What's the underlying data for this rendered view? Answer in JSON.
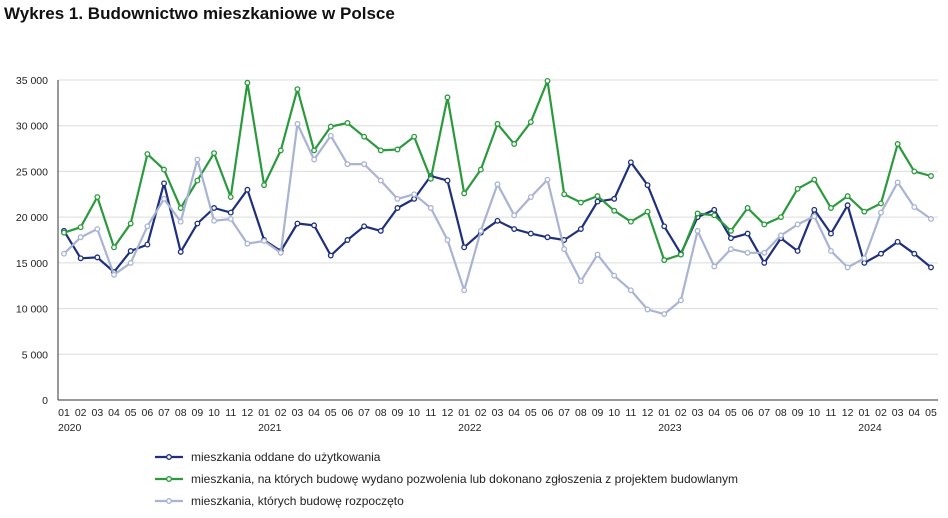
{
  "title": "Wykres 1. Budownictwo mieszkaniowe w Polsce",
  "colors": {
    "series1": "#1d2f7d",
    "series2": "#2a9a3c",
    "series3": "#a9b3d3",
    "grid": "#dcdcdc",
    "axis": "#333333"
  },
  "chart_data": {
    "type": "line",
    "title": "Wykres 1. Budownictwo mieszkaniowe w Polsce",
    "xlabel": "",
    "ylabel": "",
    "ylim": [
      0,
      35000
    ],
    "yticks": [
      0,
      5000,
      10000,
      15000,
      20000,
      25000,
      30000,
      35000
    ],
    "ytick_labels": [
      "0",
      "5 000",
      "10 000",
      "15 000",
      "20 000",
      "25 000",
      "30 000",
      "35 000"
    ],
    "grid": "horizontal",
    "legend_position": "bottom",
    "month_labels": [
      "01",
      "02",
      "03",
      "04",
      "05",
      "06",
      "07",
      "08",
      "09",
      "10",
      "11",
      "12",
      "01",
      "02",
      "03",
      "04",
      "05",
      "06",
      "07",
      "08",
      "09",
      "10",
      "11",
      "12",
      "01",
      "02",
      "03",
      "04",
      "05",
      "06",
      "07",
      "08",
      "09",
      "10",
      "11",
      "12",
      "01",
      "02",
      "03",
      "04",
      "05",
      "06",
      "07",
      "08",
      "09",
      "10",
      "11",
      "12",
      "01",
      "02",
      "03",
      "04",
      "05"
    ],
    "year_labels": [
      {
        "index": 0,
        "label": "2020"
      },
      {
        "index": 12,
        "label": "2021"
      },
      {
        "index": 24,
        "label": "2022"
      },
      {
        "index": 36,
        "label": "2023"
      },
      {
        "index": 48,
        "label": "2024"
      }
    ],
    "series": [
      {
        "name": "mieszkania oddane do użytkowania",
        "values": [
          18500,
          15500,
          15600,
          14000,
          16300,
          17000,
          23700,
          16200,
          19300,
          21000,
          20500,
          23000,
          17500,
          16300,
          19300,
          19100,
          15800,
          17500,
          19000,
          18500,
          21000,
          22000,
          24500,
          24000,
          16700,
          18300,
          19600,
          18700,
          18200,
          17800,
          17500,
          18700,
          21700,
          22000,
          26000,
          23500,
          19000,
          16000,
          20000,
          20800,
          17700,
          18200,
          15000,
          17700,
          16300,
          20800,
          18200,
          21300,
          15000,
          16000,
          17300,
          16000,
          14500
        ]
      },
      {
        "name": "mieszkania, na których budowę wydano pozwolenia lub dokonano zgłoszenia z projektem budowlanym",
        "values": [
          18300,
          18900,
          22200,
          16700,
          19300,
          26900,
          25200,
          21000,
          24000,
          27000,
          22200,
          34700,
          23500,
          27300,
          34000,
          27300,
          29900,
          30300,
          28800,
          27300,
          27400,
          28800,
          24200,
          33100,
          22600,
          25200,
          30200,
          28000,
          30400,
          34900,
          22500,
          21600,
          22300,
          20700,
          19500,
          20600,
          15300,
          15900,
          20400,
          20200,
          18500,
          21000,
          19200,
          20000,
          23100,
          24100,
          21000,
          22300,
          20600,
          21500,
          28000,
          25000,
          24500
        ]
      },
      {
        "name": "mieszkania, których budowę rozpoczęto",
        "values": [
          16000,
          17800,
          18700,
          13700,
          15000,
          19000,
          22000,
          19500,
          26300,
          19600,
          19800,
          17100,
          17400,
          16100,
          30200,
          26300,
          28900,
          25800,
          25800,
          24000,
          22000,
          22500,
          21000,
          17500,
          12000,
          18500,
          23600,
          20200,
          22200,
          24100,
          16500,
          13000,
          15900,
          13600,
          12000,
          9900,
          9400,
          10900,
          18500,
          14600,
          16500,
          16100,
          16100,
          18000,
          19200,
          20100,
          16300,
          14500,
          15500,
          20500,
          23800,
          21100,
          19800
        ]
      }
    ]
  }
}
